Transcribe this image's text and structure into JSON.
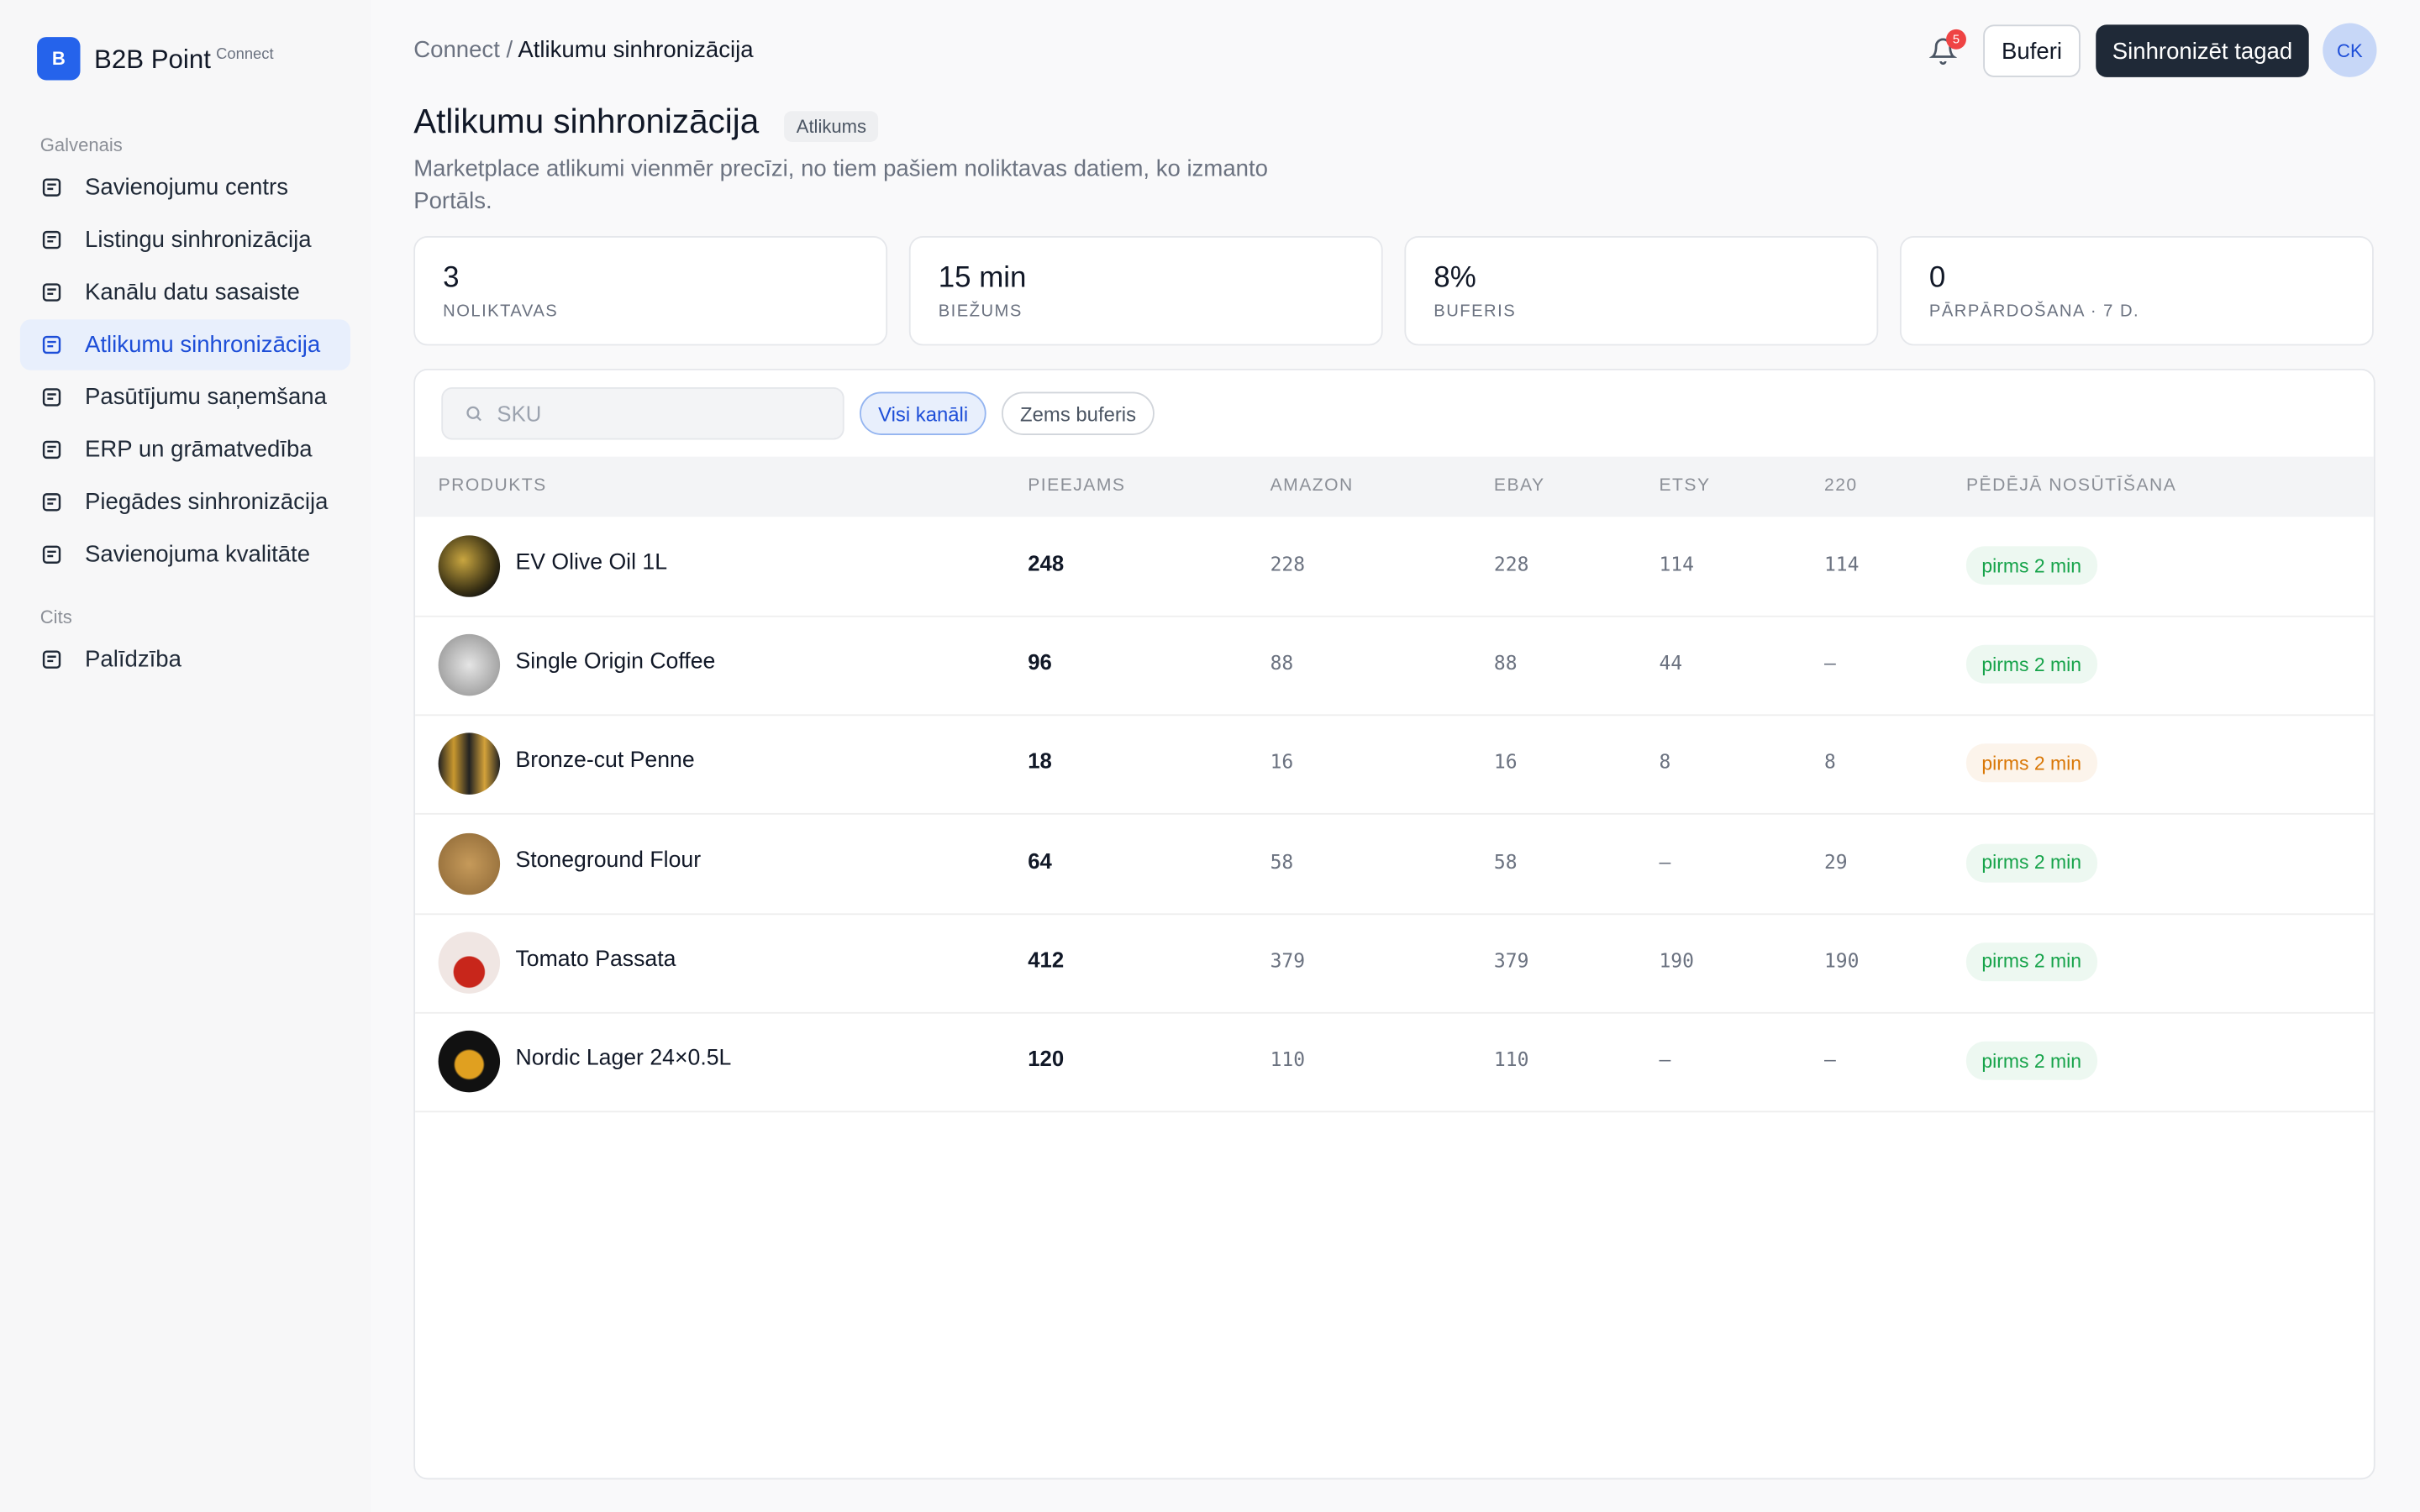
{
  "sidebar": {
    "logo": "B",
    "brand": "B2B Point",
    "brand_tag": "Connect",
    "sections": [
      {
        "title": "Galvenais",
        "items": [
          "Savienojumu centrs",
          "Listingu sinhronizācija",
          "Kanālu datu sasaiste",
          "Atlikumu sinhronizācija",
          "Pasūtījumu saņemšana",
          "ERP un grāmatvedība",
          "Piegādes sinhronizācija",
          "Savienojuma kvalitāte"
        ],
        "active": 3
      },
      {
        "title": "Cits",
        "items": [
          "Palīdzība"
        ],
        "active": null
      }
    ]
  },
  "header": {
    "breadcrumb_root": "Connect",
    "breadcrumb_sep": "/",
    "breadcrumb_current": "Atlikumu sinhronizācija",
    "notifications": "5",
    "buffers_button": "Buferi",
    "sync_button": "Sinhronizēt tagad",
    "avatar": "CK"
  },
  "page": {
    "title": "Atlikumu sinhronizācija",
    "badge": "Atlikums",
    "description": "Marketplace atlikumi vienmēr precīzi, no tiem pašiem noliktavas datiem, ko izmanto Portāls."
  },
  "stats": [
    {
      "value": "3",
      "label": "NOLIKTAVAS"
    },
    {
      "value": "15 min",
      "label": "BIEŽUMS"
    },
    {
      "value": "8%",
      "label": "BUFERIS"
    },
    {
      "value": "0",
      "label": "PĀRPĀRDOŠANA · 7 D."
    }
  ],
  "filters": {
    "search_placeholder": "SKU",
    "chips": [
      "Visi kanāli",
      "Zems buferis"
    ],
    "active": 0
  },
  "table": {
    "columns": [
      "PRODUKTS",
      "PIEEJAMS",
      "AMAZON",
      "EBAY",
      "ETSY",
      "220",
      "PĒDĒJĀ NOSŪTĪŠANA"
    ],
    "rows": [
      [
        "EV Olive Oil 1L",
        "248",
        "228",
        "228",
        "114",
        "114",
        "pirms 2 min"
      ],
      [
        "Single Origin Coffee",
        "96",
        "88",
        "88",
        "44",
        "–",
        "pirms 2 min"
      ],
      [
        "Bronze-cut Penne",
        "18",
        "16",
        "16",
        "8",
        "8",
        "pirms 2 min"
      ],
      [
        "Stoneground Flour",
        "64",
        "58",
        "58",
        "–",
        "29",
        "pirms 2 min"
      ],
      [
        "Tomato Passata",
        "412",
        "379",
        "379",
        "190",
        "190",
        "pirms 2 min"
      ],
      [
        "Nordic Lager 24×0.5L",
        "120",
        "110",
        "110",
        "–",
        "–",
        "pirms 2 min"
      ]
    ],
    "status_colors": [
      "#16a34a",
      "#16a34a",
      "#d97706",
      "#16a34a",
      "#16a34a",
      "#16a34a"
    ]
  }
}
